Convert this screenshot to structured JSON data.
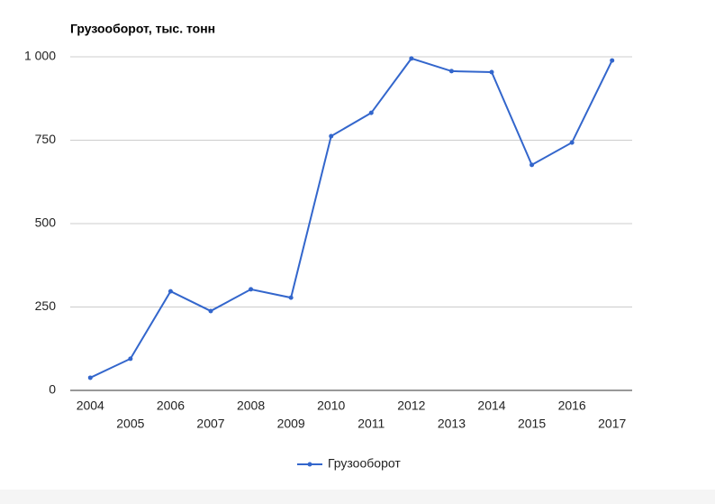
{
  "chart_data": {
    "type": "line",
    "title": "Грузооборот, тыс. тонн",
    "categories": [
      "2004",
      "2005",
      "2006",
      "2007",
      "2008",
      "2009",
      "2010",
      "2011",
      "2012",
      "2013",
      "2014",
      "2015",
      "2016",
      "2017"
    ],
    "series": [
      {
        "name": "Грузооборот",
        "color": "#3366cc",
        "values": [
          38,
          95,
          297,
          238,
          303,
          278,
          762,
          832,
          995,
          957,
          954,
          676,
          743,
          989
        ]
      }
    ],
    "ylim": [
      0,
      1000
    ],
    "yticks": [
      0,
      250,
      500,
      750,
      {
        "value": 1000,
        "label": "1 000"
      }
    ],
    "grid": true,
    "legend": "bottom"
  }
}
